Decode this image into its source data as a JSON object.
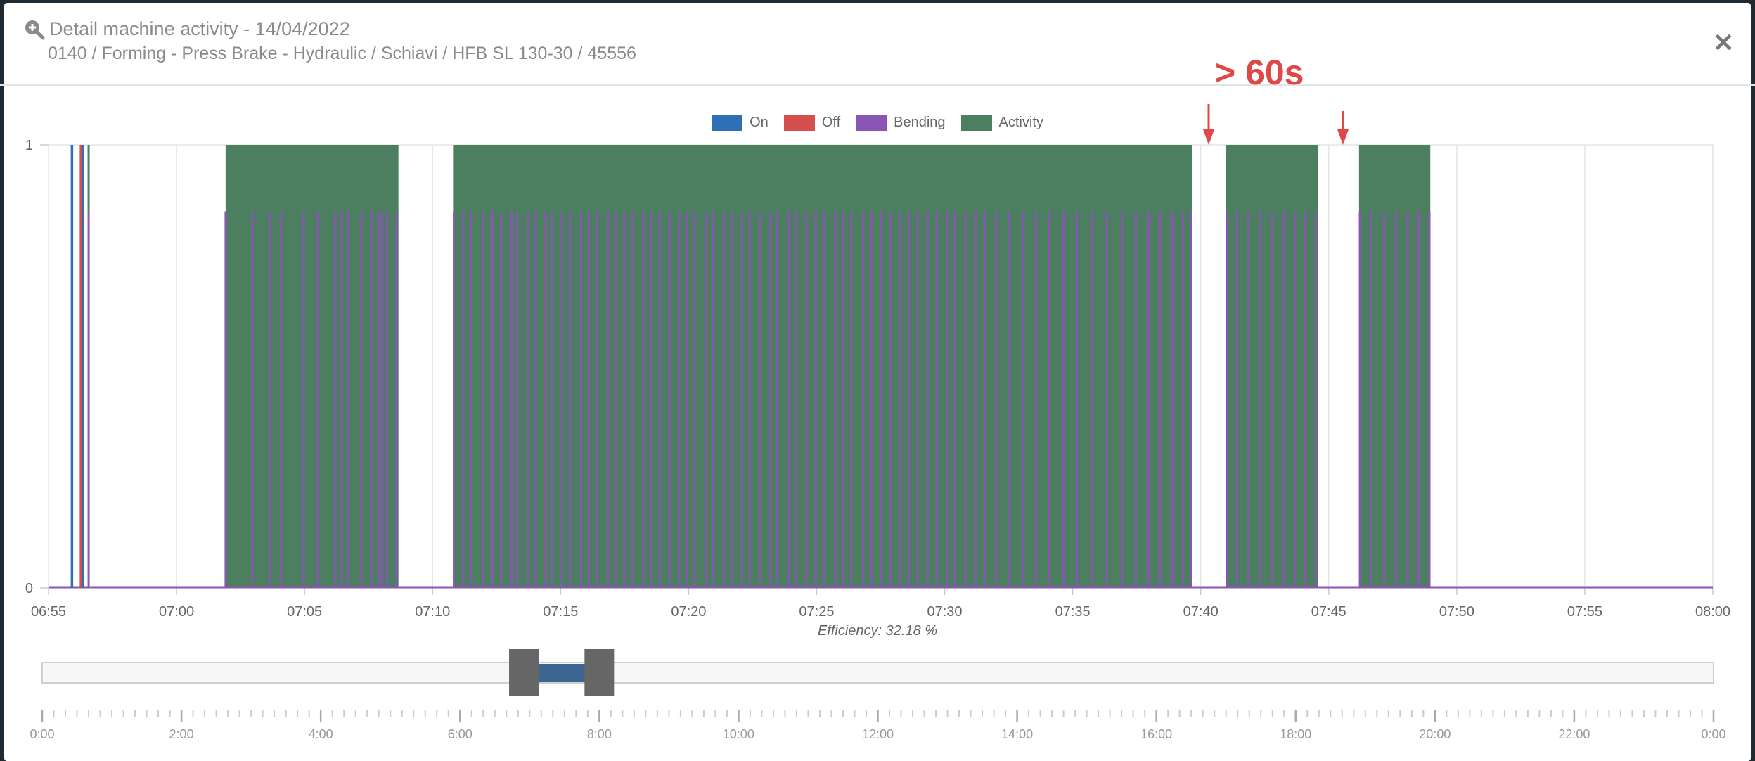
{
  "header": {
    "icon": "zoom-in-icon",
    "title": "Detail machine activity - 14/04/2022",
    "subtitle": "0140 / Forming - Press Brake - Hydraulic / Schiavi / HFB SL 130-30 / 45556",
    "close_icon": "close-icon"
  },
  "annotation": {
    "text": "> 60s",
    "color": "#e04848"
  },
  "efficiency_label": "Efficiency: 32.18 %",
  "chart_data": {
    "type": "area",
    "legend_position": "top",
    "grid": true,
    "xlim": [
      "06:55",
      "08:00"
    ],
    "ylim": [
      0,
      1
    ],
    "x_ticks": [
      "06:55",
      "07:00",
      "07:05",
      "07:10",
      "07:15",
      "07:20",
      "07:25",
      "07:30",
      "07:35",
      "07:40",
      "07:45",
      "07:50",
      "07:55",
      "08:00"
    ],
    "y_ticks": [
      "0",
      "1"
    ],
    "series": [
      {
        "name": "On",
        "color": "#2f6fb5",
        "type": "pulse",
        "value": 1,
        "times": [
          "06:55:55",
          "06:56:21"
        ]
      },
      {
        "name": "Off",
        "color": "#d64f4f",
        "type": "pulse",
        "value": 1,
        "times": [
          "06:56:16"
        ]
      },
      {
        "name": "Bending",
        "color": "#8a56b5",
        "type": "pulse",
        "value": 0.85,
        "times": [
          "06:56:34",
          "07:01:55",
          "07:02:58",
          "07:03:39",
          "07:04:05",
          "07:04:58",
          "07:05:31",
          "07:06:12",
          "07:06:27",
          "07:06:43",
          "07:07:13",
          "07:07:36",
          "07:07:53",
          "07:08:02",
          "07:08:13",
          "07:08:35",
          "07:10:50",
          "07:11:12",
          "07:11:30",
          "07:11:58",
          "07:12:20",
          "07:12:41",
          "07:13:05",
          "07:13:19",
          "07:13:44",
          "07:14:02",
          "07:14:25",
          "07:14:40",
          "07:15:03",
          "07:15:22",
          "07:15:48",
          "07:16:06",
          "07:16:24",
          "07:16:51",
          "07:17:10",
          "07:17:29",
          "07:17:47",
          "07:18:14",
          "07:18:33",
          "07:18:52",
          "07:19:15",
          "07:19:38",
          "07:19:56",
          "07:20:14",
          "07:20:40",
          "07:20:58",
          "07:21:22",
          "07:21:41",
          "07:22:05",
          "07:22:23",
          "07:22:47",
          "07:23:10",
          "07:23:28",
          "07:23:55",
          "07:24:12",
          "07:24:36",
          "07:24:58",
          "07:25:17",
          "07:25:44",
          "07:26:02",
          "07:26:21",
          "07:26:49",
          "07:27:08",
          "07:27:30",
          "07:27:52",
          "07:28:15",
          "07:28:36",
          "07:28:57",
          "07:29:20",
          "07:29:42",
          "07:30:05",
          "07:30:24",
          "07:30:50",
          "07:31:12",
          "07:31:35",
          "07:32:01",
          "07:32:30",
          "07:33:02",
          "07:33:34",
          "07:34:05",
          "07:34:38",
          "07:35:10",
          "07:35:46",
          "07:36:20",
          "07:36:55",
          "07:37:28",
          "07:37:58",
          "07:38:25",
          "07:38:54",
          "07:39:18",
          "07:39:38",
          "07:41:01",
          "07:41:25",
          "07:41:52",
          "07:42:20",
          "07:42:48",
          "07:43:15",
          "07:43:40",
          "07:44:05",
          "07:44:30",
          "07:46:13",
          "07:46:40",
          "07:47:10",
          "07:47:38",
          "07:48:05",
          "07:48:30",
          "07:48:56"
        ]
      },
      {
        "name": "Activity",
        "color": "#4b7f5f",
        "type": "area",
        "value": 1,
        "intervals": [
          [
            "07:01:55",
            "07:08:40"
          ],
          [
            "07:10:48",
            "07:39:40"
          ],
          [
            "07:40:59",
            "07:44:34"
          ],
          [
            "07:46:11",
            "07:48:58"
          ]
        ]
      }
    ]
  },
  "navigator": {
    "range": [
      "0:00",
      "24:00"
    ],
    "selected": [
      "6:55",
      "8:00"
    ],
    "tick_labels": [
      "0:00",
      "2:00",
      "4:00",
      "6:00",
      "8:00",
      "10:00",
      "12:00",
      "14:00",
      "16:00",
      "18:00",
      "20:00",
      "22:00",
      "0:00"
    ],
    "fill_color": "#3d6591"
  }
}
